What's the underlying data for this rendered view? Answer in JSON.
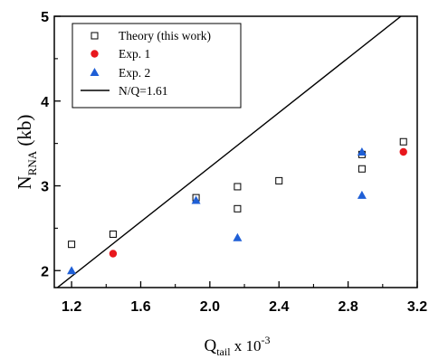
{
  "chart_data": {
    "type": "scatter",
    "xlabel": {
      "main": "Q",
      "sub": "tail",
      "suffix": " x 10",
      "sup": "-3"
    },
    "ylabel": {
      "main": "N",
      "sub": "RNA",
      "suffix": " (kb)"
    },
    "xlim": [
      1.1,
      3.2
    ],
    "ylim": [
      1.8,
      5.0
    ],
    "xticks": [
      "1.2",
      "1.6",
      "2.0",
      "2.4",
      "2.8",
      "3.2"
    ],
    "yticks": [
      "2",
      "3",
      "4",
      "5"
    ],
    "grid": false,
    "legend_position": "top-left",
    "series": [
      {
        "name": "Theory (this work)",
        "marker": "open-square",
        "color": "#000000",
        "points": [
          [
            1.2,
            2.31
          ],
          [
            1.44,
            2.43
          ],
          [
            1.92,
            2.86
          ],
          [
            2.16,
            2.99
          ],
          [
            2.16,
            2.73
          ],
          [
            2.4,
            3.06
          ],
          [
            2.88,
            3.37
          ],
          [
            2.88,
            3.2
          ],
          [
            3.12,
            3.52
          ]
        ]
      },
      {
        "name": "Exp. 1",
        "marker": "filled-circle",
        "color": "#e8171d",
        "points": [
          [
            1.44,
            2.2
          ],
          [
            3.12,
            3.4
          ]
        ]
      },
      {
        "name": "Exp. 2",
        "marker": "filled-triangle",
        "color": "#1f5fd6",
        "points": [
          [
            1.2,
            2.0
          ],
          [
            1.92,
            2.83
          ],
          [
            2.16,
            2.39
          ],
          [
            2.88,
            2.89
          ],
          [
            2.88,
            3.4
          ]
        ]
      },
      {
        "name": "N/Q=1.61",
        "marker": "line",
        "color": "#000000",
        "line": [
          [
            1.1,
            1.771
          ],
          [
            3.2,
            5.152
          ]
        ]
      }
    ]
  }
}
